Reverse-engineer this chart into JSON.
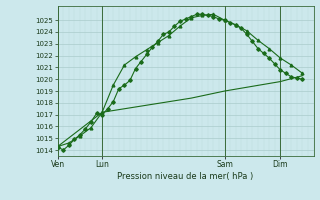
{
  "title": "Pression niveau de la mer( hPa )",
  "ylim": [
    1013.5,
    1026.2
  ],
  "yticks": [
    1014,
    1015,
    1016,
    1017,
    1018,
    1019,
    1020,
    1021,
    1022,
    1023,
    1024,
    1025
  ],
  "bg_color": "#cce8ec",
  "grid_major_color": "#aacccc",
  "grid_minor_color": "#bbdddd",
  "line_color": "#1a6b1a",
  "xtick_labels": [
    "Ven",
    "Lun",
    "Sam",
    "Dim"
  ],
  "xtick_positions": [
    0,
    16,
    60,
    80
  ],
  "vline_positions": [
    0,
    16,
    60,
    80
  ],
  "xlim": [
    0,
    92
  ],
  "series1_x": [
    0,
    2,
    4,
    6,
    8,
    10,
    12,
    14,
    16,
    18,
    20,
    22,
    24,
    26,
    28,
    30,
    32,
    34,
    36,
    38,
    40,
    42,
    44,
    46,
    48,
    50,
    52,
    54,
    56,
    58,
    60,
    62,
    64,
    66,
    68,
    70,
    72,
    74,
    76,
    78,
    80,
    82,
    84,
    86,
    88
  ],
  "series1_y": [
    1014.3,
    1014.0,
    1014.4,
    1014.9,
    1015.3,
    1015.8,
    1016.4,
    1017.1,
    1017.0,
    1017.5,
    1018.1,
    1019.2,
    1019.5,
    1019.9,
    1020.9,
    1021.5,
    1022.1,
    1022.7,
    1023.2,
    1023.8,
    1024.0,
    1024.5,
    1024.9,
    1025.1,
    1025.3,
    1025.5,
    1025.5,
    1025.4,
    1025.3,
    1025.1,
    1025.0,
    1024.8,
    1024.6,
    1024.3,
    1023.8,
    1023.2,
    1022.6,
    1022.2,
    1021.8,
    1021.3,
    1020.8,
    1020.5,
    1020.2,
    1020.1,
    1020.0
  ],
  "series2_x": [
    0,
    4,
    8,
    12,
    16,
    20,
    24,
    28,
    32,
    36,
    40,
    44,
    48,
    52,
    56,
    60,
    64,
    68,
    72,
    76,
    80,
    84,
    88
  ],
  "series2_y": [
    1014.3,
    1014.6,
    1015.2,
    1015.9,
    1017.2,
    1019.5,
    1021.2,
    1021.9,
    1022.5,
    1023.1,
    1023.7,
    1024.5,
    1025.2,
    1025.4,
    1025.5,
    1025.0,
    1024.6,
    1024.1,
    1023.3,
    1022.6,
    1021.8,
    1021.2,
    1020.5
  ],
  "series3_x": [
    0,
    16,
    32,
    48,
    60,
    80,
    88
  ],
  "series3_y": [
    1014.3,
    1017.2,
    1017.8,
    1018.4,
    1019.0,
    1019.8,
    1020.3
  ]
}
